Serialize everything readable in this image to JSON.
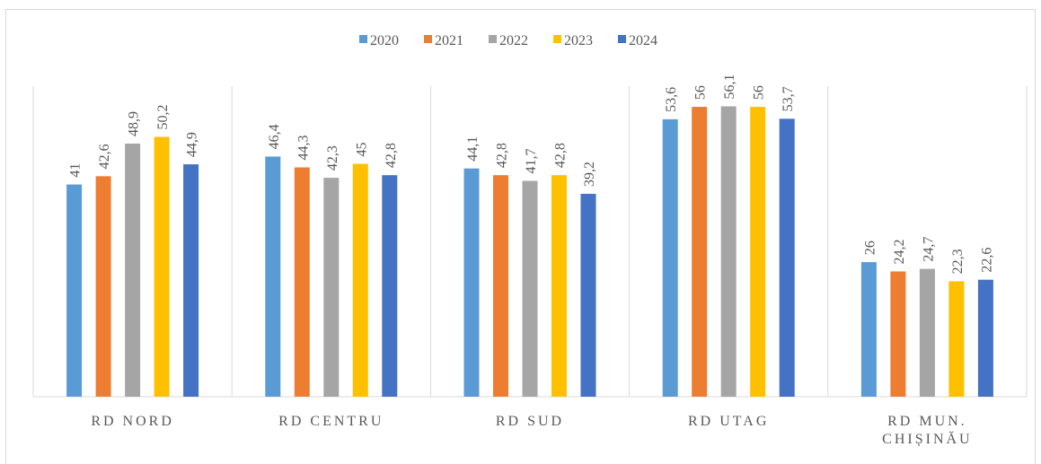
{
  "chart_data": {
    "type": "bar",
    "categories": [
      "RD NORD",
      "RD CENTRU",
      "RD SUD",
      "RD UTAG",
      "RD MUN. CHIȘINĂU"
    ],
    "series": [
      {
        "name": "2020",
        "color": "#5b9bd5",
        "values": [
          41,
          46.4,
          44.1,
          53.6,
          26
        ],
        "value_labels": [
          "41",
          "46,4",
          "44,1",
          "53,6",
          "26"
        ]
      },
      {
        "name": "2021",
        "color": "#ed7d31",
        "values": [
          42.6,
          44.3,
          42.8,
          56,
          24.2
        ],
        "value_labels": [
          "42,6",
          "44,3",
          "42,8",
          "56",
          "24,2"
        ]
      },
      {
        "name": "2022",
        "color": "#a5a5a5",
        "values": [
          48.9,
          42.3,
          41.7,
          56.1,
          24.7
        ],
        "value_labels": [
          "48,9",
          "42,3",
          "41,7",
          "56,1",
          "24,7"
        ]
      },
      {
        "name": "2023",
        "color": "#ffc000",
        "values": [
          50.2,
          45,
          42.8,
          56,
          22.3
        ],
        "value_labels": [
          "50,2",
          "45",
          "42,8",
          "56",
          "22,3"
        ]
      },
      {
        "name": "2024",
        "color": "#4472c4",
        "values": [
          44.9,
          42.8,
          39.2,
          53.7,
          22.6
        ],
        "value_labels": [
          "44,9",
          "42,8",
          "39,2",
          "53,7",
          "22,6"
        ]
      }
    ],
    "ylim": [
      0,
      60
    ],
    "legend": "top"
  }
}
